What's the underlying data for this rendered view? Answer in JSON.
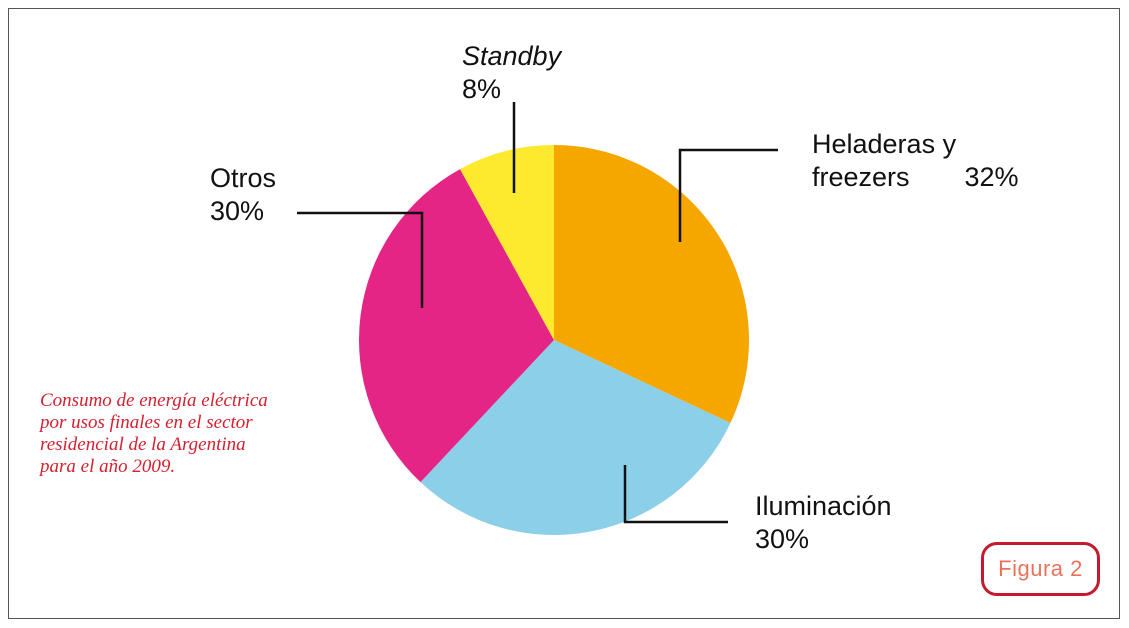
{
  "chart_data": {
    "type": "pie",
    "categories": [
      "Heladeras y freezers",
      "Iluminación",
      "Otros",
      "Standby"
    ],
    "values": [
      32,
      30,
      30,
      8
    ],
    "value_labels": [
      "32%",
      "30%",
      "30%",
      "8%"
    ],
    "colors": [
      "#f5a700",
      "#8ccfe8",
      "#e52585",
      "#fde92e"
    ],
    "caption": "Consumo de energía eléctrica por usos finales en el sector residencial de la Argentina para el año 2009.",
    "figure_label": "Figura 2"
  }
}
